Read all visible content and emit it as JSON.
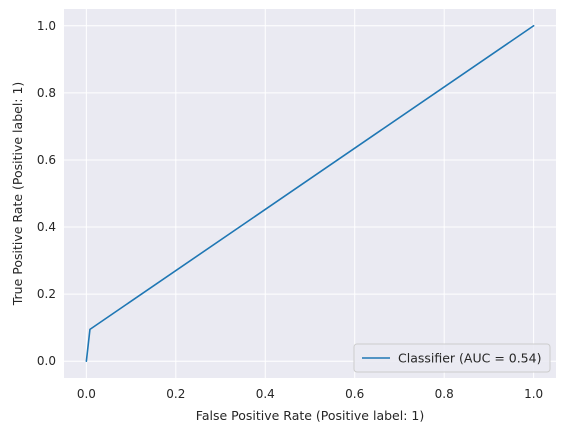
{
  "chart_data": {
    "type": "line",
    "title": "",
    "xlabel": "False Positive Rate (Positive label: 1)",
    "ylabel": "True Positive Rate (Positive label: 1)",
    "xlim": [
      -0.05,
      1.05
    ],
    "ylim": [
      -0.05,
      1.05
    ],
    "xticks": [
      0.0,
      0.2,
      0.4,
      0.6,
      0.8,
      1.0
    ],
    "yticks": [
      0.0,
      0.2,
      0.4,
      0.6,
      0.8,
      1.0
    ],
    "xtick_labels": [
      "0.0",
      "0.2",
      "0.4",
      "0.6",
      "0.8",
      "1.0"
    ],
    "ytick_labels": [
      "0.0",
      "0.2",
      "0.4",
      "0.6",
      "0.8",
      "1.0"
    ],
    "grid": true,
    "legend_position": "lower-right",
    "series": [
      {
        "name": "Classifier (AUC = 0.54)",
        "color": "#1f77b4",
        "x": [
          0.0,
          0.008,
          1.0
        ],
        "y": [
          0.0,
          0.095,
          1.0
        ]
      }
    ]
  },
  "colors": {
    "plot_background": "#eaeaf2",
    "grid": "#ffffff",
    "text": "#262626"
  }
}
